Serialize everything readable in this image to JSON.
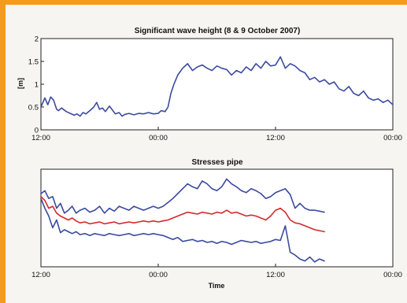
{
  "chart_data": [
    {
      "type": "line",
      "title": "Significant wave height (8 & 9 October 2007)",
      "ylabel": "[m]",
      "xlabel": "",
      "ylim": [
        0,
        2
      ],
      "yticks": [
        "0",
        "0.5",
        "1",
        "1.5",
        "2"
      ],
      "xlim": [
        0,
        36
      ],
      "xticks": [
        {
          "x": 0,
          "label": "12:00"
        },
        {
          "x": 12,
          "label": "00:00"
        },
        {
          "x": 24,
          "label": "12:00"
        },
        {
          "x": 36,
          "label": "00:00"
        }
      ],
      "series": [
        {
          "color": "#3b4a9e",
          "x": [
            0.0,
            0.4,
            0.7,
            1.0,
            1.3,
            1.6,
            1.8,
            2.1,
            2.6,
            3.0,
            3.4,
            3.7,
            4.0,
            4.3,
            4.6,
            5.0,
            5.4,
            5.7,
            6.0,
            6.3,
            6.6,
            7.0,
            7.3,
            7.6,
            8.0,
            8.3,
            8.6,
            9.0,
            9.5,
            10.0,
            10.5,
            11.0,
            11.5,
            12.0,
            12.3,
            12.7,
            13.0,
            13.3,
            13.6,
            14.0,
            14.5,
            15.0,
            15.5,
            16.0,
            16.5,
            17.0,
            17.5,
            18.0,
            18.5,
            19.0,
            19.5,
            20.0,
            20.5,
            21.0,
            21.5,
            22.0,
            22.5,
            23.0,
            23.5,
            24.0,
            24.5,
            25.0,
            25.5,
            26.0,
            26.5,
            27.0,
            27.5,
            28.0,
            28.5,
            29.0,
            29.5,
            30.0,
            30.5,
            31.0,
            31.5,
            32.0,
            32.5,
            33.0,
            33.5,
            34.0,
            34.5,
            35.0,
            35.5,
            36.0
          ],
          "values": [
            0.5,
            0.7,
            0.55,
            0.72,
            0.65,
            0.45,
            0.42,
            0.48,
            0.4,
            0.36,
            0.32,
            0.35,
            0.3,
            0.38,
            0.35,
            0.42,
            0.5,
            0.6,
            0.45,
            0.48,
            0.4,
            0.52,
            0.44,
            0.35,
            0.38,
            0.3,
            0.34,
            0.36,
            0.33,
            0.36,
            0.35,
            0.38,
            0.35,
            0.36,
            0.42,
            0.4,
            0.5,
            0.8,
            1.0,
            1.2,
            1.35,
            1.45,
            1.3,
            1.38,
            1.42,
            1.35,
            1.3,
            1.4,
            1.35,
            1.32,
            1.2,
            1.3,
            1.25,
            1.38,
            1.3,
            1.45,
            1.35,
            1.5,
            1.4,
            1.42,
            1.6,
            1.35,
            1.45,
            1.4,
            1.3,
            1.25,
            1.1,
            1.15,
            1.05,
            1.1,
            1.0,
            1.05,
            0.9,
            0.85,
            0.95,
            0.8,
            0.75,
            0.85,
            0.7,
            0.65,
            0.68,
            0.6,
            0.65,
            0.55
          ]
        }
      ]
    },
    {
      "type": "line",
      "title": "Stresses pipe",
      "xlabel": "Time",
      "ylabel": "",
      "ylim": [
        0,
        1
      ],
      "yticks": [],
      "xlim": [
        0,
        36
      ],
      "xticks": [
        {
          "x": 0,
          "label": "12:00"
        },
        {
          "x": 12,
          "label": "00:00"
        },
        {
          "x": 24,
          "label": "12:00"
        },
        {
          "x": 36,
          "label": "00:00"
        }
      ],
      "series": [
        {
          "color": "#3b4a9e",
          "x": [
            0,
            0.4,
            0.8,
            1.2,
            1.6,
            2.0,
            2.4,
            2.8,
            3.2,
            3.6,
            4.0,
            4.5,
            5.0,
            5.5,
            6.0,
            6.5,
            7.0,
            7.5,
            8.0,
            8.5,
            9.0,
            9.5,
            10.0,
            10.5,
            11.0,
            11.5,
            12.0,
            12.5,
            13.0,
            13.5,
            14.0,
            14.5,
            15.0,
            15.5,
            16.0,
            16.5,
            17.0,
            17.5,
            18.0,
            18.5,
            19.0,
            19.5,
            20.0,
            20.5,
            21.0,
            21.5,
            22.0,
            22.5,
            23.0,
            23.5,
            24.0,
            24.5,
            25.0,
            25.5,
            26.0,
            26.5,
            27.0,
            27.5,
            28.0,
            28.5,
            29.0
          ],
          "values": [
            0.75,
            0.78,
            0.7,
            0.72,
            0.6,
            0.65,
            0.55,
            0.58,
            0.62,
            0.55,
            0.58,
            0.6,
            0.56,
            0.58,
            0.62,
            0.55,
            0.6,
            0.57,
            0.62,
            0.6,
            0.58,
            0.62,
            0.6,
            0.58,
            0.6,
            0.62,
            0.6,
            0.62,
            0.66,
            0.7,
            0.75,
            0.8,
            0.85,
            0.82,
            0.8,
            0.88,
            0.85,
            0.8,
            0.78,
            0.82,
            0.9,
            0.85,
            0.82,
            0.78,
            0.76,
            0.8,
            0.78,
            0.75,
            0.7,
            0.72,
            0.76,
            0.78,
            0.8,
            0.74,
            0.6,
            0.65,
            0.6,
            0.58,
            0.58,
            0.57,
            0.56
          ]
        },
        {
          "color": "#d42a2a",
          "x": [
            0,
            0.4,
            0.8,
            1.2,
            1.6,
            2.0,
            2.4,
            2.8,
            3.2,
            3.6,
            4.0,
            4.5,
            5.0,
            5.5,
            6.0,
            6.5,
            7.0,
            7.5,
            8.0,
            8.5,
            9.0,
            9.5,
            10.0,
            10.5,
            11.0,
            11.5,
            12.0,
            12.5,
            13.0,
            13.5,
            14.0,
            14.5,
            15.0,
            15.5,
            16.0,
            16.5,
            17.0,
            17.5,
            18.0,
            18.5,
            19.0,
            19.5,
            20.0,
            20.5,
            21.0,
            21.5,
            22.0,
            22.5,
            23.0,
            23.5,
            24.0,
            24.5,
            25.0,
            25.5,
            26.0,
            26.5,
            27.0,
            27.5,
            28.0,
            28.5,
            29.0
          ],
          "values": [
            0.72,
            0.68,
            0.6,
            0.62,
            0.55,
            0.52,
            0.5,
            0.48,
            0.5,
            0.47,
            0.45,
            0.46,
            0.44,
            0.45,
            0.46,
            0.44,
            0.45,
            0.46,
            0.44,
            0.45,
            0.46,
            0.45,
            0.46,
            0.47,
            0.46,
            0.47,
            0.46,
            0.47,
            0.48,
            0.5,
            0.52,
            0.54,
            0.56,
            0.55,
            0.54,
            0.56,
            0.55,
            0.54,
            0.56,
            0.55,
            0.58,
            0.55,
            0.56,
            0.54,
            0.52,
            0.53,
            0.52,
            0.5,
            0.48,
            0.52,
            0.58,
            0.6,
            0.56,
            0.48,
            0.45,
            0.44,
            0.42,
            0.4,
            0.38,
            0.37,
            0.36
          ]
        },
        {
          "color": "#3b4a9e",
          "x": [
            0,
            0.4,
            0.8,
            1.2,
            1.6,
            2.0,
            2.4,
            2.8,
            3.2,
            3.6,
            4.0,
            4.5,
            5.0,
            5.5,
            6.0,
            6.5,
            7.0,
            7.5,
            8.0,
            8.5,
            9.0,
            9.5,
            10.0,
            10.5,
            11.0,
            11.5,
            12.0,
            12.5,
            13.0,
            13.5,
            14.0,
            14.5,
            15.0,
            15.5,
            16.0,
            16.5,
            17.0,
            17.5,
            18.0,
            18.5,
            19.0,
            19.5,
            20.0,
            20.5,
            21.0,
            21.5,
            22.0,
            22.5,
            23.0,
            23.5,
            24.0,
            24.5,
            25.0,
            25.5,
            26.0,
            26.5,
            27.0,
            27.5,
            28.0,
            28.5,
            29.0
          ],
          "values": [
            0.7,
            0.6,
            0.52,
            0.4,
            0.48,
            0.35,
            0.38,
            0.36,
            0.34,
            0.36,
            0.33,
            0.34,
            0.32,
            0.34,
            0.33,
            0.32,
            0.34,
            0.33,
            0.32,
            0.33,
            0.34,
            0.32,
            0.33,
            0.34,
            0.33,
            0.34,
            0.33,
            0.32,
            0.3,
            0.28,
            0.3,
            0.26,
            0.27,
            0.28,
            0.26,
            0.27,
            0.25,
            0.26,
            0.24,
            0.26,
            0.25,
            0.23,
            0.25,
            0.27,
            0.26,
            0.25,
            0.26,
            0.24,
            0.25,
            0.26,
            0.28,
            0.27,
            0.42,
            0.15,
            0.12,
            0.08,
            0.06,
            0.1,
            0.05,
            0.08,
            0.06
          ]
        }
      ]
    }
  ]
}
